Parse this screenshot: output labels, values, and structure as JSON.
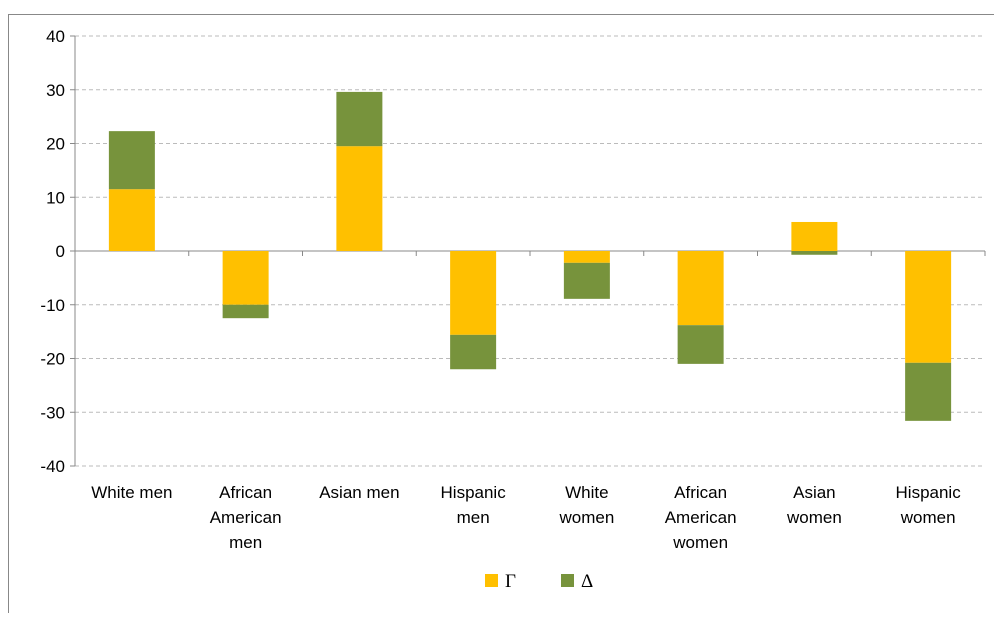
{
  "chart_data": {
    "type": "stacked_bar",
    "categories": [
      "White men",
      "African American men",
      "Asian men",
      "Hispanic men",
      "White women",
      "African American women",
      "Asian women",
      "Hispanic women"
    ],
    "series": [
      {
        "name": "Γ",
        "color": "#ffc000",
        "values": [
          11.5,
          -10.0,
          19.5,
          -15.6,
          -2.2,
          -13.8,
          5.4,
          -20.8
        ]
      },
      {
        "name": "Δ",
        "color": "#77933c",
        "values": [
          10.8,
          -2.5,
          10.1,
          -6.4,
          -6.7,
          -7.2,
          -0.7,
          -10.8
        ]
      }
    ],
    "ylim": [
      -40,
      40
    ],
    "yticks": [
      -40,
      -30,
      -20,
      -10,
      0,
      10,
      20,
      30,
      40
    ],
    "grid": true,
    "legend": "bottom"
  }
}
